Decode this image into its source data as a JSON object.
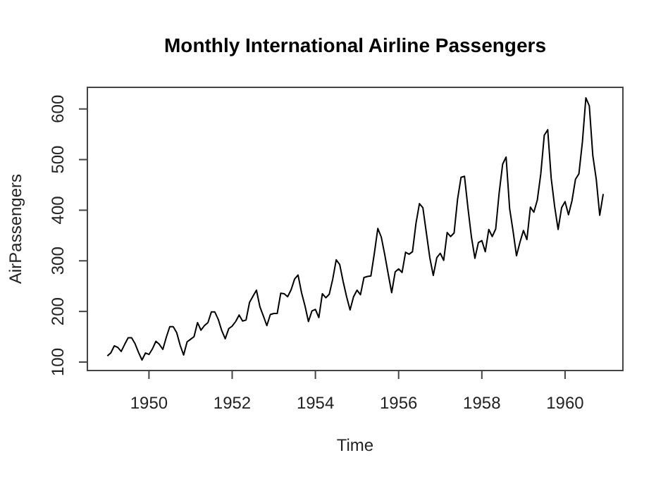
{
  "chart_data": {
    "type": "line",
    "title": "Monthly International Airline Passengers",
    "xlabel": "Time",
    "ylabel": "AirPassengers",
    "xlim": [
      1948.52,
      1961.39
    ],
    "ylim": [
      83.28,
      642.72
    ],
    "xticks": [
      1950,
      1952,
      1954,
      1956,
      1958,
      1960
    ],
    "yticks": [
      100,
      200,
      300,
      400,
      500,
      600
    ],
    "grid": false,
    "series": [
      {
        "color": "#000000",
        "x": [
          1949,
          1949.083,
          1949.167,
          1949.25,
          1949.333,
          1949.417,
          1949.5,
          1949.583,
          1949.667,
          1949.75,
          1949.833,
          1949.917,
          1950,
          1950.083,
          1950.167,
          1950.25,
          1950.333,
          1950.417,
          1950.5,
          1950.583,
          1950.667,
          1950.75,
          1950.833,
          1950.917,
          1951,
          1951.083,
          1951.167,
          1951.25,
          1951.333,
          1951.417,
          1951.5,
          1951.583,
          1951.667,
          1951.75,
          1951.833,
          1951.917,
          1952,
          1952.083,
          1952.167,
          1952.25,
          1952.333,
          1952.417,
          1952.5,
          1952.583,
          1952.667,
          1952.75,
          1952.833,
          1952.917,
          1953,
          1953.083,
          1953.167,
          1953.25,
          1953.333,
          1953.417,
          1953.5,
          1953.583,
          1953.667,
          1953.75,
          1953.833,
          1953.917,
          1954,
          1954.083,
          1954.167,
          1954.25,
          1954.333,
          1954.417,
          1954.5,
          1954.583,
          1954.667,
          1954.75,
          1954.833,
          1954.917,
          1955,
          1955.083,
          1955.167,
          1955.25,
          1955.333,
          1955.417,
          1955.5,
          1955.583,
          1955.667,
          1955.75,
          1955.833,
          1955.917,
          1956,
          1956.083,
          1956.167,
          1956.25,
          1956.333,
          1956.417,
          1956.5,
          1956.583,
          1956.667,
          1956.75,
          1956.833,
          1956.917,
          1957,
          1957.083,
          1957.167,
          1957.25,
          1957.333,
          1957.417,
          1957.5,
          1957.583,
          1957.667,
          1957.75,
          1957.833,
          1957.917,
          1958,
          1958.083,
          1958.167,
          1958.25,
          1958.333,
          1958.417,
          1958.5,
          1958.583,
          1958.667,
          1958.75,
          1958.833,
          1958.917,
          1959,
          1959.083,
          1959.167,
          1959.25,
          1959.333,
          1959.417,
          1959.5,
          1959.583,
          1959.667,
          1959.75,
          1959.833,
          1959.917,
          1960,
          1960.083,
          1960.167,
          1960.25,
          1960.333,
          1960.417,
          1960.5,
          1960.583,
          1960.667,
          1960.75,
          1960.833,
          1960.917
        ],
        "values": [
          112,
          118,
          132,
          129,
          121,
          135,
          148,
          148,
          136,
          119,
          104,
          118,
          115,
          126,
          141,
          135,
          125,
          149,
          170,
          170,
          158,
          133,
          114,
          140,
          145,
          150,
          178,
          163,
          172,
          178,
          199,
          199,
          184,
          162,
          146,
          166,
          171,
          180,
          193,
          181,
          183,
          218,
          230,
          242,
          209,
          191,
          172,
          194,
          196,
          196,
          236,
          235,
          229,
          243,
          264,
          272,
          237,
          211,
          180,
          201,
          204,
          188,
          235,
          227,
          234,
          264,
          302,
          293,
          259,
          229,
          203,
          229,
          242,
          233,
          267,
          269,
          270,
          315,
          364,
          347,
          312,
          274,
          237,
          278,
          284,
          277,
          317,
          313,
          318,
          374,
          413,
          405,
          355,
          306,
          271,
          306,
          315,
          301,
          356,
          348,
          355,
          422,
          465,
          467,
          404,
          347,
          305,
          336,
          340,
          318,
          362,
          348,
          363,
          435,
          491,
          505,
          404,
          359,
          310,
          337,
          360,
          342,
          406,
          396,
          420,
          472,
          548,
          559,
          463,
          407,
          362,
          405,
          417,
          391,
          419,
          461,
          472,
          535,
          622,
          606,
          508,
          461,
          390,
          432
        ]
      }
    ]
  }
}
